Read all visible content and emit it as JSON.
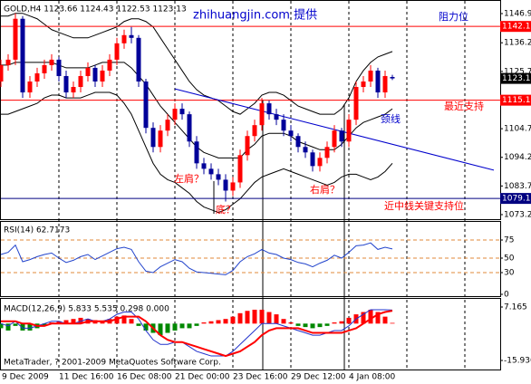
{
  "chart_data": [
    {
      "type": "candlestick",
      "title": "GOLD,H4 1123.66 1124.43 1122.53 1123.13",
      "categories": [
        "9 Dec 2009",
        null,
        null,
        null,
        null,
        null,
        null,
        null,
        "11 Dec 16:00",
        null,
        null,
        null,
        null,
        null,
        null,
        null,
        "16 Dec 08:00",
        null,
        null,
        null,
        null,
        null,
        null,
        null,
        "21 Dec 00:00",
        null,
        null,
        null,
        null,
        null,
        null,
        null,
        "23 Dec 16:00",
        null,
        null,
        null,
        null,
        null,
        null,
        null,
        "29 Dec 12:00",
        null,
        null,
        null,
        null,
        null,
        null,
        null,
        "4 Jan 08:00",
        null,
        null,
        null,
        null,
        null,
        null
      ],
      "open": [
        1122,
        1128,
        1130,
        1145,
        1118,
        1122,
        1125,
        1128,
        1130,
        1124,
        1118,
        1120,
        1124,
        1127,
        1122,
        1126,
        1130,
        1136,
        1139,
        1138,
        1122,
        1105,
        1098,
        1104,
        1108,
        1112,
        1110,
        1100,
        1092,
        1090,
        1088,
        1086,
        1082,
        1085,
        1095,
        1102,
        1106,
        1114,
        1110,
        1108,
        1104,
        1102,
        1098,
        1096,
        1091,
        1094,
        1098,
        1104,
        1100,
        1108,
        1120,
        1122,
        1126,
        1118,
        1123.66
      ],
      "high": [
        1130,
        1132,
        1147,
        1146,
        1124,
        1127,
        1130,
        1132,
        1131,
        1126,
        1122,
        1126,
        1129,
        1128,
        1128,
        1132,
        1138,
        1141,
        1142,
        1139,
        1123,
        1107,
        1106,
        1110,
        1114,
        1114,
        1111,
        1102,
        1094,
        1092,
        1090,
        1088,
        1087,
        1097,
        1104,
        1108,
        1116,
        1115,
        1112,
        1110,
        1106,
        1103,
        1100,
        1097,
        1096,
        1100,
        1106,
        1105,
        1110,
        1122,
        1124,
        1128,
        1127,
        1126,
        1124.43
      ],
      "low": [
        1120,
        1126,
        1128,
        1116,
        1116,
        1120,
        1123,
        1126,
        1122,
        1116,
        1116,
        1118,
        1122,
        1120,
        1120,
        1124,
        1128,
        1134,
        1136,
        1120,
        1103,
        1096,
        1096,
        1102,
        1106,
        1108,
        1098,
        1090,
        1088,
        1086,
        1084,
        1078,
        1080,
        1083,
        1093,
        1100,
        1104,
        1108,
        1106,
        1102,
        1100,
        1096,
        1094,
        1089,
        1089,
        1092,
        1096,
        1098,
        1098,
        1106,
        1118,
        1120,
        1116,
        1116,
        1122.53
      ],
      "close": [
        1128,
        1130,
        1145,
        1118,
        1122,
        1125,
        1128,
        1130,
        1124,
        1118,
        1120,
        1124,
        1127,
        1122,
        1126,
        1130,
        1136,
        1139,
        1138,
        1122,
        1105,
        1098,
        1104,
        1108,
        1112,
        1110,
        1100,
        1092,
        1090,
        1088,
        1086,
        1082,
        1085,
        1095,
        1102,
        1106,
        1114,
        1110,
        1108,
        1104,
        1102,
        1098,
        1096,
        1091,
        1094,
        1098,
        1104,
        1100,
        1108,
        1120,
        1122,
        1126,
        1118,
        1124,
        1123.13
      ],
      "up_color": "#ff0000",
      "down_color": "#000099",
      "bands": {
        "color": "#000000",
        "upper": [
          1146,
          1146,
          1147,
          1147,
          1146,
          1145,
          1143,
          1141,
          1140,
          1139,
          1138,
          1138,
          1138,
          1139,
          1140,
          1141,
          1142,
          1144,
          1145,
          1145,
          1144,
          1142,
          1138,
          1134,
          1130,
          1126,
          1122,
          1119,
          1117,
          1116,
          1115,
          1113,
          1111,
          1110,
          1112,
          1114,
          1117,
          1118,
          1118,
          1117,
          1115,
          1113,
          1112,
          1111,
          1110,
          1110,
          1110,
          1112,
          1116,
          1122,
          1126,
          1129,
          1131,
          1132,
          1133
        ],
        "middle": [
          1128,
          1128,
          1129,
          1129,
          1129,
          1129,
          1129,
          1129,
          1128,
          1127,
          1127,
          1127,
          1127,
          1128,
          1129,
          1129,
          1129,
          1129,
          1127,
          1124,
          1121,
          1117,
          1113,
          1110,
          1107,
          1104,
          1101,
          1098,
          1096,
          1095,
          1094,
          1094,
          1094,
          1094,
          1097,
          1099,
          1102,
          1103,
          1103,
          1103,
          1102,
          1100,
          1099,
          1098,
          1097,
          1097,
          1097,
          1099,
          1102,
          1105,
          1107,
          1108,
          1109,
          1110,
          1112
        ],
        "lower": [
          1110,
          1110,
          1111,
          1112,
          1113,
          1114,
          1116,
          1117,
          1117,
          1116,
          1116,
          1116,
          1117,
          1118,
          1118,
          1118,
          1117,
          1114,
          1110,
          1104,
          1098,
          1092,
          1088,
          1086,
          1085,
          1083,
          1081,
          1078,
          1076,
          1075,
          1074,
          1075,
          1077,
          1079,
          1082,
          1085,
          1087,
          1088,
          1089,
          1090,
          1089,
          1088,
          1087,
          1086,
          1085,
          1084,
          1085,
          1087,
          1088,
          1088,
          1087,
          1086,
          1087,
          1089,
          1092
        ]
      },
      "levels": [
        {
          "value": 1142.19,
          "color": "#ff0000"
        },
        {
          "value": 1115.15,
          "color": "#ff0000"
        },
        {
          "value": 1079.13,
          "color": "#000080"
        }
      ],
      "trendline": {
        "x": [
          24,
          68
        ],
        "y": [
          1119.3,
          1089.5
        ],
        "color": "#0000cc"
      },
      "ylim": [
        1071.53,
        1151.88
      ],
      "yticks": [
        {
          "value": 1146.9,
          "label": "1146.90"
        },
        {
          "value": 1136.2,
          "label": "1136.20"
        },
        {
          "value": 1125.7,
          "label": "1125.70"
        },
        {
          "value": 1104.7,
          "label": "1104.70"
        },
        {
          "value": 1094.2,
          "label": "1094.20"
        },
        {
          "value": 1083.7,
          "label": "1083.70"
        },
        {
          "value": 1073.2,
          "label": "1073.20"
        }
      ],
      "annotations": [
        {
          "text": "zhihuangjin.com 提供",
          "color": "#0000cc"
        },
        {
          "text": "阻力位",
          "color": "#0000cc"
        },
        {
          "text": "最近支持",
          "color": "#ff0000"
        },
        {
          "text": "颈线",
          "color": "#0000cc"
        },
        {
          "text": "近中线关键支持位",
          "color": "#ff0000"
        },
        {
          "text": "左肩？",
          "color": "#ff0000"
        },
        {
          "text": "底？",
          "color": "#ff0000"
        },
        {
          "text": "右肩？",
          "color": "#ff0000"
        }
      ]
    },
    {
      "type": "line",
      "title": "RSI(14) 62.7173",
      "color": "#2244cc",
      "grid_color": "#e08a3a",
      "values": [
        55,
        58,
        68,
        45,
        48,
        52,
        55,
        57,
        50,
        44,
        47,
        52,
        55,
        48,
        53,
        58,
        63,
        65,
        62,
        45,
        32,
        30,
        38,
        43,
        48,
        45,
        36,
        31,
        30,
        29,
        28,
        27,
        33,
        45,
        52,
        56,
        62,
        57,
        55,
        50,
        48,
        44,
        42,
        38,
        43,
        47,
        54,
        50,
        58,
        67,
        68,
        71,
        62,
        65,
        62.7173
      ],
      "ylim": [
        0,
        100
      ],
      "yticks": [
        75,
        50,
        30,
        0
      ]
    },
    {
      "type": "macd",
      "title": "MACD(12,26,9) 5.833 5.535 0.298 0.000",
      "footer": "MetaTrader, ? 2001-2009 MetaQuotes Software Corp.",
      "pos_color": "#ff0000",
      "neg_color": "#008800",
      "histogram": [
        -2,
        -3,
        -1,
        -3,
        -3,
        -2,
        -1,
        0.5,
        1,
        1.5,
        2,
        2.5,
        2,
        1.5,
        1,
        2,
        3,
        3.5,
        2,
        -1,
        -3,
        -4,
        -5,
        -4,
        -3,
        -2,
        -2,
        -1,
        0.5,
        1,
        1.5,
        2,
        3,
        4.5,
        5.5,
        6,
        6,
        5,
        4,
        2,
        0.5,
        -1,
        -1.5,
        -2,
        -1.5,
        -1,
        0.5,
        1,
        2.5,
        4,
        5,
        6,
        5,
        3,
        0.298
      ],
      "series": [
        {
          "color": "#2233cc",
          "values": [
            0,
            -1,
            1,
            -2,
            -2,
            -1,
            0,
            1,
            1,
            0,
            0,
            1,
            2,
            1,
            1,
            2,
            4,
            5,
            5,
            2,
            -3,
            -7,
            -9,
            -9,
            -8,
            -8,
            -10,
            -12,
            -13,
            -14,
            -14,
            -14,
            -12,
            -9,
            -6,
            -3,
            0,
            0,
            0,
            -1,
            -2,
            -3,
            -4,
            -5,
            -5,
            -4,
            -3,
            -3,
            -1,
            2,
            4,
            6,
            6,
            6,
            5.833
          ]
        },
        {
          "color": "#ff0000",
          "values": [
            1,
            1,
            1,
            0,
            0,
            -1,
            -1,
            0,
            0,
            0,
            0,
            0,
            1,
            1,
            1,
            1,
            2,
            3,
            3,
            3,
            1,
            -2,
            -5,
            -7,
            -8,
            -8,
            -9,
            -10,
            -11,
            -12,
            -13,
            -14,
            -13,
            -12,
            -10,
            -8,
            -5,
            -3,
            -2,
            -2,
            -2,
            -2,
            -3,
            -4,
            -4,
            -4,
            -4,
            -4,
            -3,
            -2,
            0,
            2,
            4,
            5,
            5.535
          ]
        }
      ],
      "ylim": [
        -19.85,
        10.69
      ],
      "yticks": [
        7.165,
        -15.936
      ]
    }
  ]
}
